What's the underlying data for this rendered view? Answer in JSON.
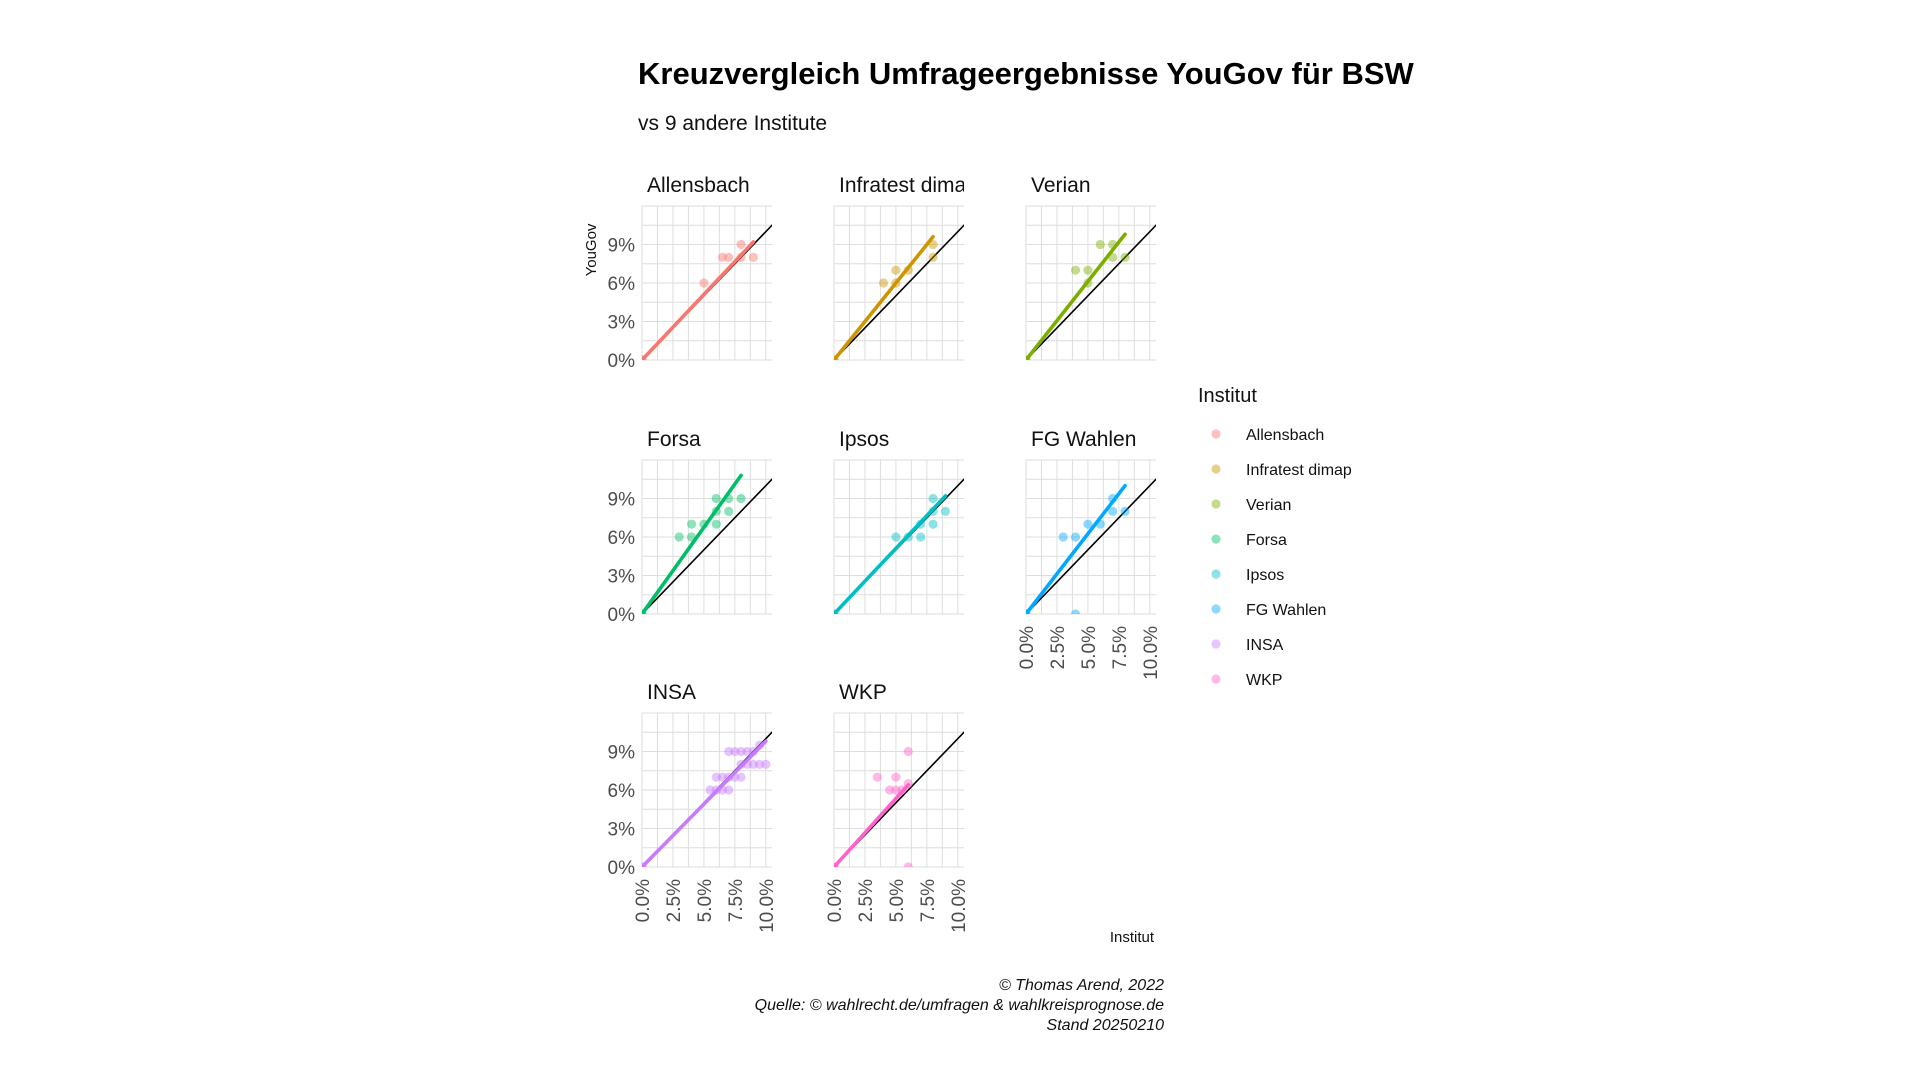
{
  "chart_data": {
    "type": "scatter",
    "title": "Kreuzvergleich Umfrageergebnisse YouGov für BSW",
    "subtitle": "vs 9 andere Institute",
    "xlabel": "Institut",
    "ylabel": "YouGov",
    "x_ticks": [
      "0.0%",
      "2.5%",
      "5.0%",
      "7.5%",
      "10.0%"
    ],
    "y_ticks": [
      "0%",
      "3%",
      "6%",
      "9%"
    ],
    "xlim": [
      0,
      10.5
    ],
    "ylim": [
      0,
      12
    ],
    "legend_title": "Institut",
    "legend_position": "right",
    "caption": [
      "© Thomas Arend, 2022",
      "Quelle: © wahlrecht.de/umfragen & wahlkreisprognose.de",
      "Stand 20250210"
    ],
    "panels": [
      {
        "name": "Allensbach",
        "label": "Allensbach",
        "color": "#F8766D",
        "points": [
          [
            0,
            0
          ],
          [
            0,
            0
          ],
          [
            5,
            6
          ],
          [
            6.5,
            8
          ],
          [
            7,
            8
          ],
          [
            8,
            9
          ],
          [
            8,
            8
          ],
          [
            9,
            8
          ]
        ],
        "fit": [
          [
            0,
            0
          ],
          [
            9,
            9.2
          ]
        ]
      },
      {
        "name": "Infratest dimap",
        "label": "Infratest dimap",
        "color": "#CD9600",
        "points": [
          [
            0,
            0
          ],
          [
            0,
            0
          ],
          [
            4,
            6
          ],
          [
            5,
            7
          ],
          [
            5,
            6
          ],
          [
            6,
            7
          ],
          [
            8,
            9
          ],
          [
            8,
            8
          ]
        ],
        "fit": [
          [
            0,
            0
          ],
          [
            8,
            9.6
          ]
        ]
      },
      {
        "name": "Verian",
        "label": "Verian",
        "color": "#7CAE00",
        "points": [
          [
            0,
            0
          ],
          [
            0,
            0
          ],
          [
            4,
            7
          ],
          [
            5,
            7
          ],
          [
            5,
            6
          ],
          [
            6,
            9
          ],
          [
            7,
            9
          ],
          [
            7,
            8
          ],
          [
            8,
            8
          ]
        ],
        "fit": [
          [
            0,
            0
          ],
          [
            8,
            9.8
          ]
        ]
      },
      {
        "name": "Forsa",
        "label": "Forsa",
        "color": "#00BE67",
        "points": [
          [
            0,
            0
          ],
          [
            0,
            0
          ],
          [
            3,
            6
          ],
          [
            4,
            6
          ],
          [
            4,
            7
          ],
          [
            5,
            7
          ],
          [
            6,
            8
          ],
          [
            6,
            9
          ],
          [
            6,
            7
          ],
          [
            7,
            9
          ],
          [
            7,
            8
          ],
          [
            8,
            9
          ]
        ],
        "fit": [
          [
            0,
            0
          ],
          [
            8,
            10.8
          ]
        ]
      },
      {
        "name": "Ipsos",
        "label": "Ipsos",
        "color": "#00BFC4",
        "points": [
          [
            0,
            0
          ],
          [
            0,
            0
          ],
          [
            5,
            6
          ],
          [
            6,
            6
          ],
          [
            7,
            6
          ],
          [
            7,
            7
          ],
          [
            8,
            7
          ],
          [
            8,
            9
          ],
          [
            8,
            8
          ],
          [
            9,
            8
          ]
        ],
        "fit": [
          [
            0,
            0
          ],
          [
            9,
            9.2
          ]
        ]
      },
      {
        "name": "FG Wahlen",
        "label": "FG Wahlen",
        "color": "#00A9FF",
        "points": [
          [
            0,
            0
          ],
          [
            0,
            0
          ],
          [
            3,
            6
          ],
          [
            4,
            6
          ],
          [
            4,
            0
          ],
          [
            5,
            7
          ],
          [
            6,
            7
          ],
          [
            7,
            9
          ],
          [
            7,
            8
          ],
          [
            8,
            8
          ]
        ],
        "fit": [
          [
            0,
            0
          ],
          [
            8,
            10
          ]
        ]
      },
      {
        "name": "INSA",
        "label": "INSA",
        "color": "#C77CFF",
        "points": [
          [
            0,
            0
          ],
          [
            0,
            0
          ],
          [
            5.5,
            6
          ],
          [
            6,
            6
          ],
          [
            6.5,
            6
          ],
          [
            7,
            6
          ],
          [
            6,
            7
          ],
          [
            6.5,
            7
          ],
          [
            7,
            7
          ],
          [
            7.5,
            7
          ],
          [
            8,
            7
          ],
          [
            7,
            9
          ],
          [
            7.5,
            9
          ],
          [
            8,
            8
          ],
          [
            8.5,
            8
          ],
          [
            8,
            9
          ],
          [
            8.5,
            9
          ],
          [
            9,
            8
          ],
          [
            9,
            9
          ],
          [
            9.5,
            8
          ],
          [
            10,
            8
          ],
          [
            9.5,
            9.5
          ]
        ],
        "fit": [
          [
            0,
            0
          ],
          [
            10,
            9.8
          ]
        ]
      },
      {
        "name": "WKP",
        "label": "WKP",
        "color": "#FF61CC",
        "points": [
          [
            0,
            0
          ],
          [
            0,
            0
          ],
          [
            3.5,
            7
          ],
          [
            4.5,
            6
          ],
          [
            5,
            7
          ],
          [
            5,
            6
          ],
          [
            5.5,
            6
          ],
          [
            6,
            9
          ],
          [
            6,
            0
          ],
          [
            6,
            6.5
          ]
        ],
        "fit": [
          [
            0,
            0
          ],
          [
            6,
            6.4
          ]
        ]
      }
    ]
  }
}
